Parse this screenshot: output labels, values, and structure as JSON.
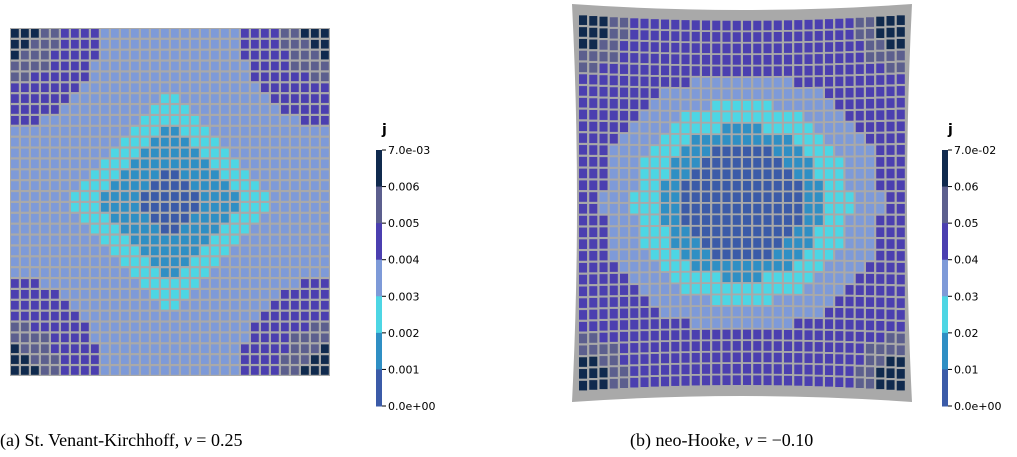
{
  "panels": [
    {
      "id": "a",
      "caption_prefix": "(a) St. Venant-Kirchhoff, ",
      "caption_symbol": "ν",
      "caption_value": " = 0.25",
      "colorbar": {
        "title": "j",
        "tick_labels": [
          "7.0e-03",
          "0.006",
          "0.005",
          "0.004",
          "0.003",
          "0.002",
          "0.001",
          "0.0e+00"
        ],
        "max": 0.007,
        "min": 0.0
      }
    },
    {
      "id": "b",
      "caption_prefix": "(b) neo-Hooke, ",
      "caption_symbol": "ν",
      "caption_value": " = −0.10",
      "colorbar": {
        "title": "j",
        "tick_labels": [
          "7.0e-02",
          "0.06",
          "0.05",
          "0.04",
          "0.03",
          "0.02",
          "0.01",
          "0.0e+00"
        ],
        "max": 0.07,
        "min": 0.0
      }
    }
  ],
  "palette": [
    "#3b5ba8",
    "#2f8fc4",
    "#4dd6e4",
    "#7e9ad8",
    "#4b3fb0",
    "#5c5f8e",
    "#102a4e"
  ],
  "background_fill": "#a9a9a9"
}
